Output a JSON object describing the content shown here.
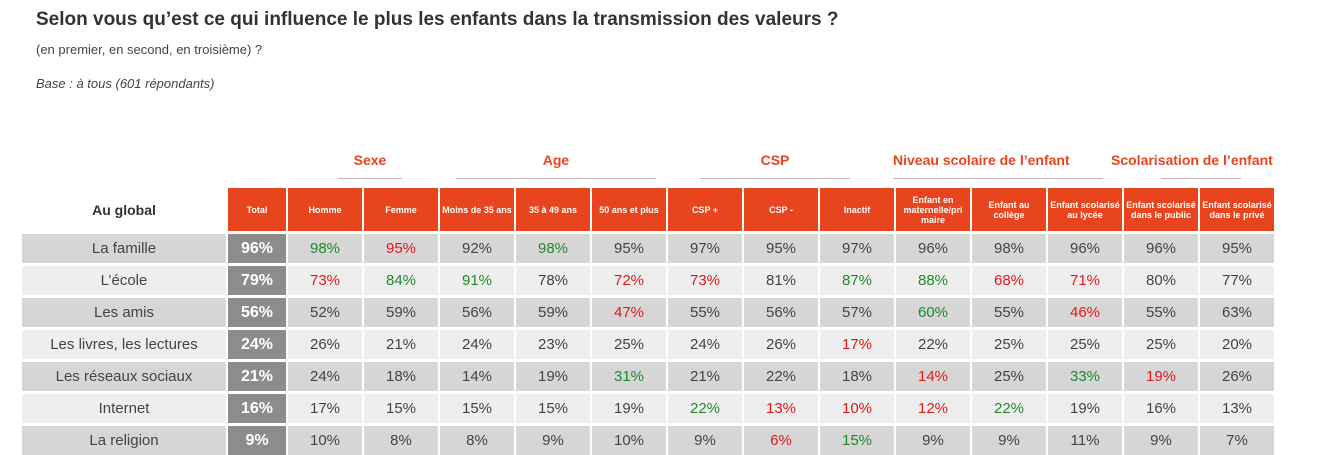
{
  "title": "Selon vous qu’est ce qui influence le plus les enfants dans la transmission des valeurs ?",
  "subtitle": "(en premier, en second, en troisième) ?",
  "base": "Base : à tous (601 répondants)",
  "colors": {
    "accent": "#e8451f",
    "total_bg": "#8c8c8c",
    "row_dark": "#d6d6d6",
    "row_light": "#eeeeee",
    "positive": "#1f8a2a",
    "negative": "#e8151b"
  },
  "chart_data": {
    "type": "table",
    "corner_label": "Au global",
    "groups": [
      {
        "label": "Sexe"
      },
      {
        "label": "Age"
      },
      {
        "label": "CSP"
      },
      {
        "label": "Niveau scolaire de l’enfant"
      },
      {
        "label": "Scolarisation de l’enfant"
      }
    ],
    "columns": [
      "Total",
      "Homme",
      "Femme",
      "Moins de 35 ans",
      "35 à 49 ans",
      "50 ans et plus",
      "CSP +",
      "CSP -",
      "Inactif",
      "Enfant en maternelle/pri maire",
      "Enfant au collège",
      "Enfant scolarisé au lycée",
      "Enfant scolarisé dans le public",
      "Enfant scolarisé dans le privé"
    ],
    "rows": [
      {
        "label": "La famille",
        "values": [
          "96%",
          "98%",
          "95%",
          "92%",
          "98%",
          "95%",
          "97%",
          "95%",
          "97%",
          "96%",
          "98%",
          "96%",
          "96%",
          "95%"
        ],
        "colors": [
          "",
          "g",
          "r",
          "",
          "g",
          "",
          "",
          "",
          "",
          "",
          "",
          "",
          "",
          ""
        ]
      },
      {
        "label": "L’école",
        "values": [
          "79%",
          "73%",
          "84%",
          "91%",
          "78%",
          "72%",
          "73%",
          "81%",
          "87%",
          "88%",
          "68%",
          "71%",
          "80%",
          "77%"
        ],
        "colors": [
          "",
          "r",
          "g",
          "g",
          "",
          "r",
          "r",
          "",
          "g",
          "g",
          "r",
          "r",
          "",
          ""
        ]
      },
      {
        "label": "Les amis",
        "values": [
          "56%",
          "52%",
          "59%",
          "56%",
          "59%",
          "47%",
          "55%",
          "56%",
          "57%",
          "60%",
          "55%",
          "46%",
          "55%",
          "63%"
        ],
        "colors": [
          "",
          "",
          "",
          "",
          "",
          "r",
          "",
          "",
          "",
          "g",
          "",
          "r",
          "",
          ""
        ]
      },
      {
        "label": "Les livres, les lectures",
        "values": [
          "24%",
          "26%",
          "21%",
          "24%",
          "23%",
          "25%",
          "24%",
          "26%",
          "17%",
          "22%",
          "25%",
          "25%",
          "25%",
          "20%"
        ],
        "colors": [
          "",
          "",
          "",
          "",
          "",
          "",
          "",
          "",
          "r",
          "",
          "",
          "",
          "",
          ""
        ]
      },
      {
        "label": "Les réseaux sociaux",
        "values": [
          "21%",
          "24%",
          "18%",
          "14%",
          "19%",
          "31%",
          "21%",
          "22%",
          "18%",
          "14%",
          "25%",
          "33%",
          "19%",
          "26%"
        ],
        "colors": [
          "",
          "",
          "",
          "",
          "",
          "g",
          "",
          "",
          "",
          "r",
          "",
          "g",
          "r",
          ""
        ]
      },
      {
        "label": "Internet",
        "values": [
          "16%",
          "17%",
          "15%",
          "15%",
          "15%",
          "19%",
          "22%",
          "13%",
          "10%",
          "12%",
          "22%",
          "19%",
          "16%",
          "13%"
        ],
        "colors": [
          "",
          "",
          "",
          "",
          "",
          "",
          "g",
          "r",
          "r",
          "r",
          "g",
          "",
          "",
          ""
        ]
      },
      {
        "label": "La religion",
        "values": [
          "9%",
          "10%",
          "8%",
          "8%",
          "9%",
          "10%",
          "9%",
          "6%",
          "15%",
          "9%",
          "9%",
          "11%",
          "9%",
          "7%"
        ],
        "colors": [
          "",
          "",
          "",
          "",
          "",
          "",
          "",
          "r",
          "g",
          "",
          "",
          "",
          "",
          ""
        ]
      }
    ]
  }
}
